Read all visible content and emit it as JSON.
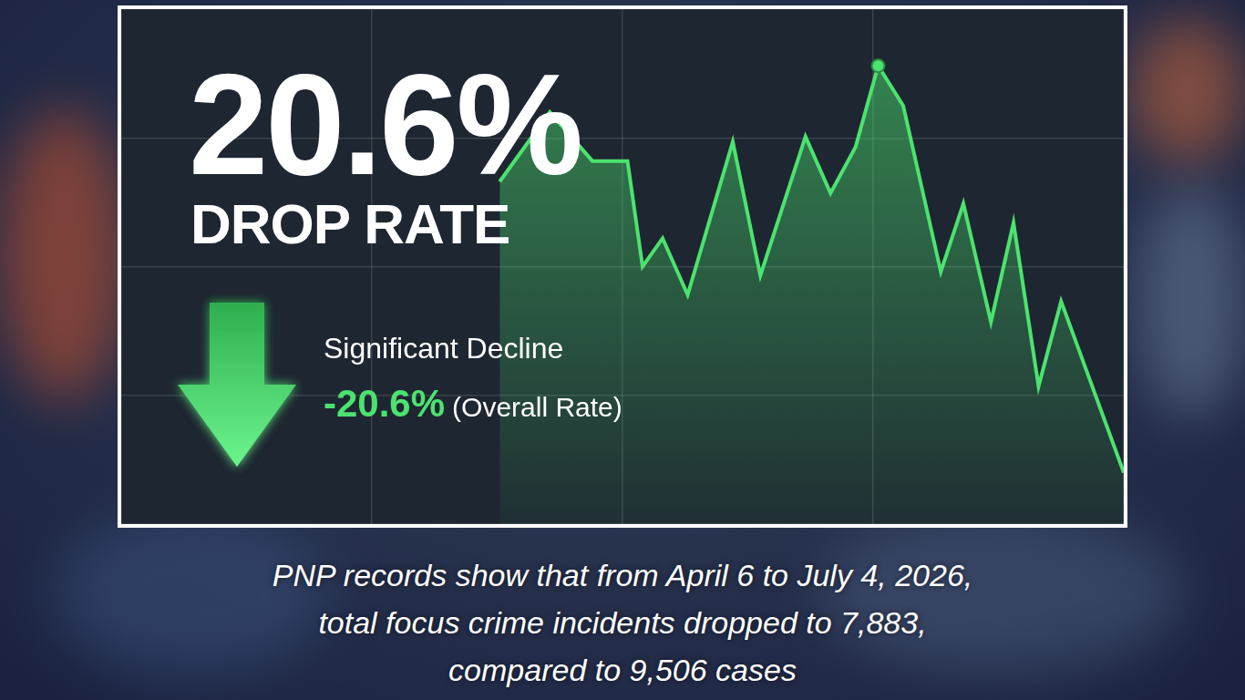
{
  "chart_data": {
    "type": "line",
    "headline": "20.6%",
    "headline_sub": "DROP RATE",
    "annotations": [
      "Significant Decline",
      "-20.6%",
      "(Overall Rate)"
    ],
    "x": [
      1.51,
      1.71,
      1.88,
      2.02,
      2.08,
      2.16,
      2.26,
      2.44,
      2.55,
      2.73,
      2.83,
      2.93,
      3.02,
      3.12,
      3.27,
      3.36,
      3.47,
      3.56,
      3.66,
      3.75,
      4.0
    ],
    "values": [
      2.66,
      3.2,
      2.82,
      2.82,
      2.0,
      2.22,
      1.78,
      2.97,
      1.93,
      3.01,
      2.57,
      2.93,
      3.56,
      3.25,
      1.96,
      2.49,
      1.57,
      2.34,
      1.07,
      1.73,
      0.4
    ],
    "color": "#4be36f",
    "marker": "circle",
    "xlim": [
      0,
      4
    ],
    "xticks": [
      0,
      1,
      2,
      3,
      4
    ],
    "ylim": [
      0,
      4
    ],
    "yticks": [
      0,
      1,
      2,
      3,
      4
    ],
    "grid": true,
    "tick_labels": false
  },
  "caption": [
    "PNP records show that from April 6 to July 4, 2026,",
    "total focus crime incidents dropped to 7,883,",
    "compared to 9,506 cases"
  ]
}
